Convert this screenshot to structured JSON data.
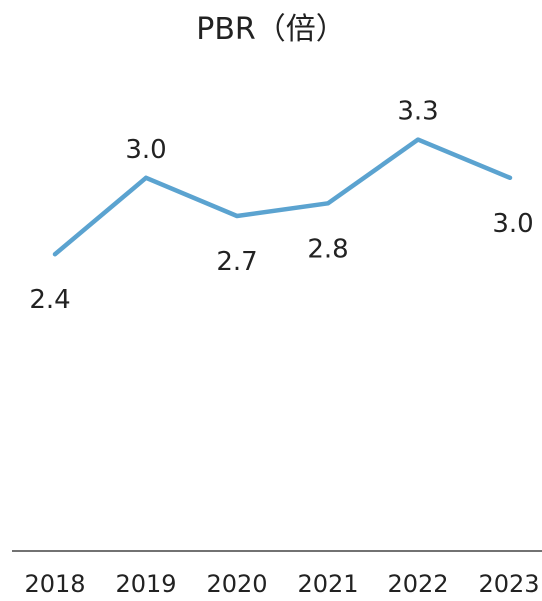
{
  "chart_data": {
    "type": "line",
    "title": "PBR（倍）",
    "xlabel": "",
    "ylabel": "",
    "categories": [
      "2018",
      "2019",
      "2020",
      "2021",
      "2022",
      "2023"
    ],
    "values": [
      2.4,
      3.0,
      2.7,
      2.8,
      3.3,
      3.0
    ],
    "data_labels": [
      "2.4",
      "3.0",
      "2.7",
      "2.8",
      "3.3",
      "3.0"
    ],
    "ylim": [
      0,
      4
    ],
    "grid": false,
    "legend": "none",
    "colors": {
      "line": "#5ba3d0",
      "axis": "#444444",
      "text": "#222222"
    }
  }
}
